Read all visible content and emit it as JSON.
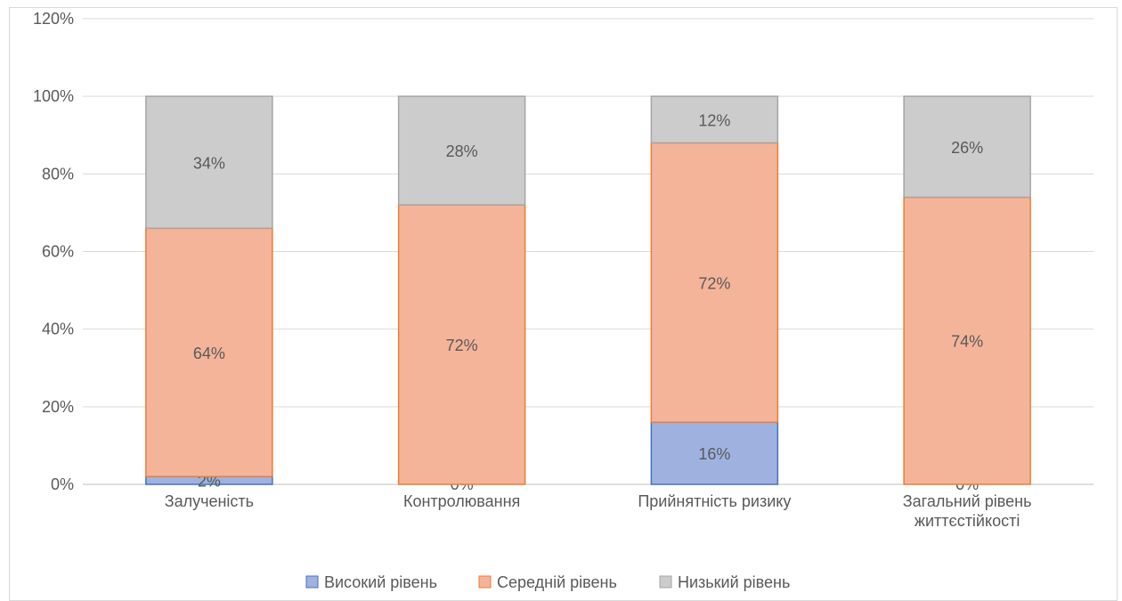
{
  "chart_data": {
    "type": "bar",
    "stacked": true,
    "categories": [
      [
        "Залученість"
      ],
      [
        "Контролювання"
      ],
      [
        "Прийнятність ризику"
      ],
      [
        "Загальний рівень",
        "життєстійкості"
      ]
    ],
    "series": [
      {
        "name": "Високий рівень",
        "values": [
          2,
          0,
          16,
          0
        ],
        "labels": [
          "2%",
          "0%",
          "16%",
          "0%"
        ],
        "fill": "#9fb2df",
        "stroke": "#4472c4"
      },
      {
        "name": "Середній рівень",
        "values": [
          64,
          72,
          72,
          74
        ],
        "labels": [
          "64%",
          "72%",
          "72%",
          "74%"
        ],
        "fill": "#f4b49a",
        "stroke": "#ed7d31"
      },
      {
        "name": "Низький рівень",
        "values": [
          34,
          28,
          12,
          26
        ],
        "labels": [
          "34%",
          "28%",
          "12%",
          "26%"
        ],
        "fill": "#cccccc",
        "stroke": "#a5a5a5"
      }
    ],
    "ylim": [
      0,
      120
    ],
    "yticks": [
      "0%",
      "20%",
      "40%",
      "60%",
      "80%",
      "100%",
      "120%"
    ],
    "grid": true,
    "legend": "bottom",
    "title": "",
    "xlabel": "",
    "ylabel": ""
  }
}
